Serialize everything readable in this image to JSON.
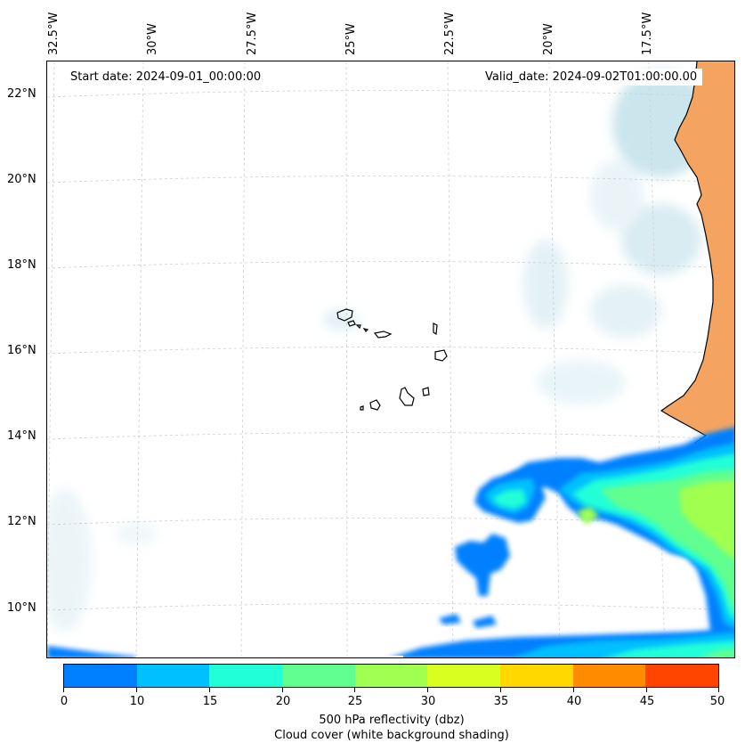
{
  "map": {
    "lon_labels": [
      "32.5°W",
      "30°W",
      "27.5°W",
      "25°W",
      "22.5°W",
      "20°W",
      "17.5°W"
    ],
    "lat_labels": [
      "22°N",
      "20°N",
      "18°N",
      "16°N",
      "14°N",
      "12°N",
      "10°N"
    ],
    "start_date": "Start date: 2024-09-01_00:00:00",
    "valid_date": "Valid_date: 2024-09-02T01:00:00.00",
    "land_color": "#f4a460",
    "cloud_color": "#add8e6",
    "coastline_color": "#000000"
  },
  "colorbar": {
    "ticks": [
      "0",
      "10",
      "15",
      "20",
      "25",
      "30",
      "35",
      "40",
      "45",
      "50"
    ],
    "colors": [
      "#0080ff",
      "#00c0ff",
      "#20ffd8",
      "#60ff90",
      "#a0ff50",
      "#d8ff20",
      "#ffd800",
      "#ff8c00",
      "#ff4500"
    ],
    "title_line1": "500 hPa reflectivity (dbz)",
    "title_line2": "Cloud cover (white background shading)"
  }
}
